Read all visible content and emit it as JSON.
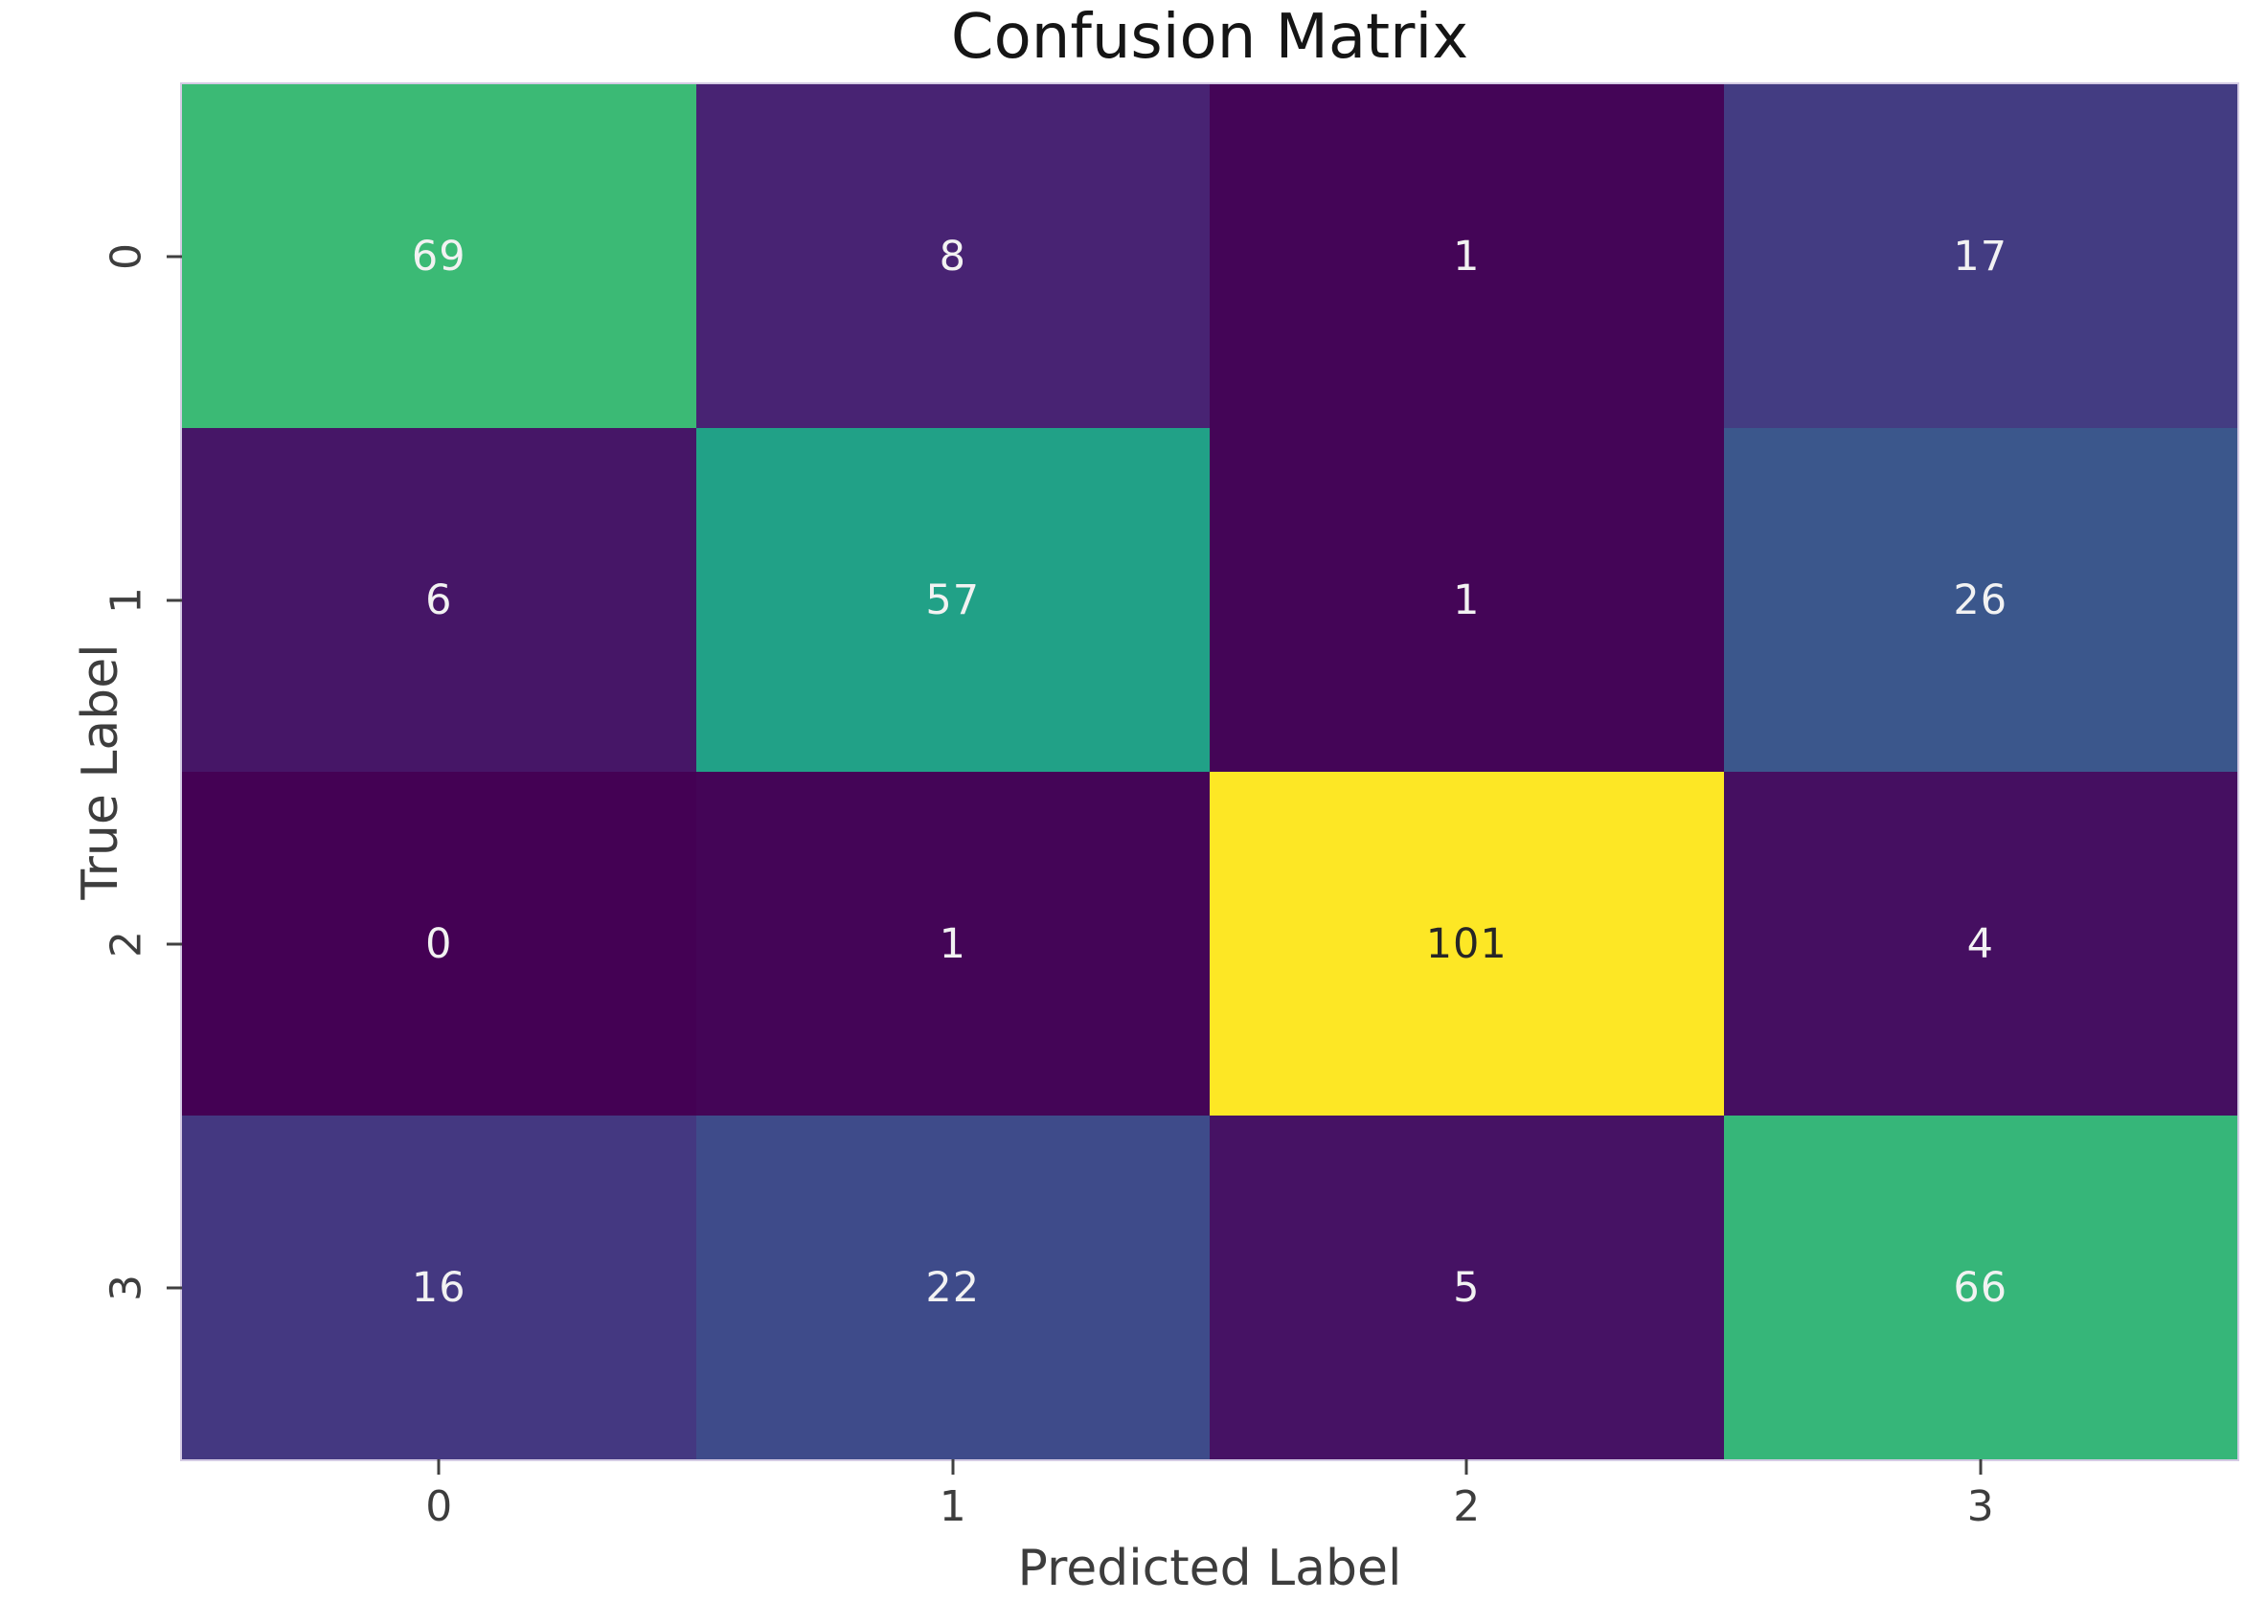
{
  "chart_data": {
    "type": "heatmap",
    "title": "Confusion Matrix",
    "xlabel": "Predicted Label",
    "ylabel": "True Label",
    "x_tick_labels": [
      "0",
      "1",
      "2",
      "3"
    ],
    "y_tick_labels": [
      "0",
      "1",
      "2",
      "3"
    ],
    "matrix": [
      [
        69,
        8,
        1,
        17
      ],
      [
        6,
        57,
        1,
        26
      ],
      [
        0,
        1,
        101,
        4
      ],
      [
        16,
        22,
        5,
        66
      ]
    ],
    "colormap": "viridis",
    "vmin": 0,
    "vmax": 101,
    "colorbar": "none",
    "grid": "off",
    "cell_colors": [
      [
        "#3bba75",
        "#482373",
        "#440557",
        "#433c82"
      ],
      [
        "#461667",
        "#21a187",
        "#440557",
        "#3b578c"
      ],
      [
        "#440154",
        "#440557",
        "#fde725",
        "#450f61"
      ],
      [
        "#443881",
        "#3e4b8a",
        "#461264",
        "#36b679"
      ]
    ],
    "annotation_light_color": "#f2f2f2",
    "annotation_dark_color": "#262626",
    "title_color": "#151515",
    "axis_text_color": "#3d3d3d"
  }
}
